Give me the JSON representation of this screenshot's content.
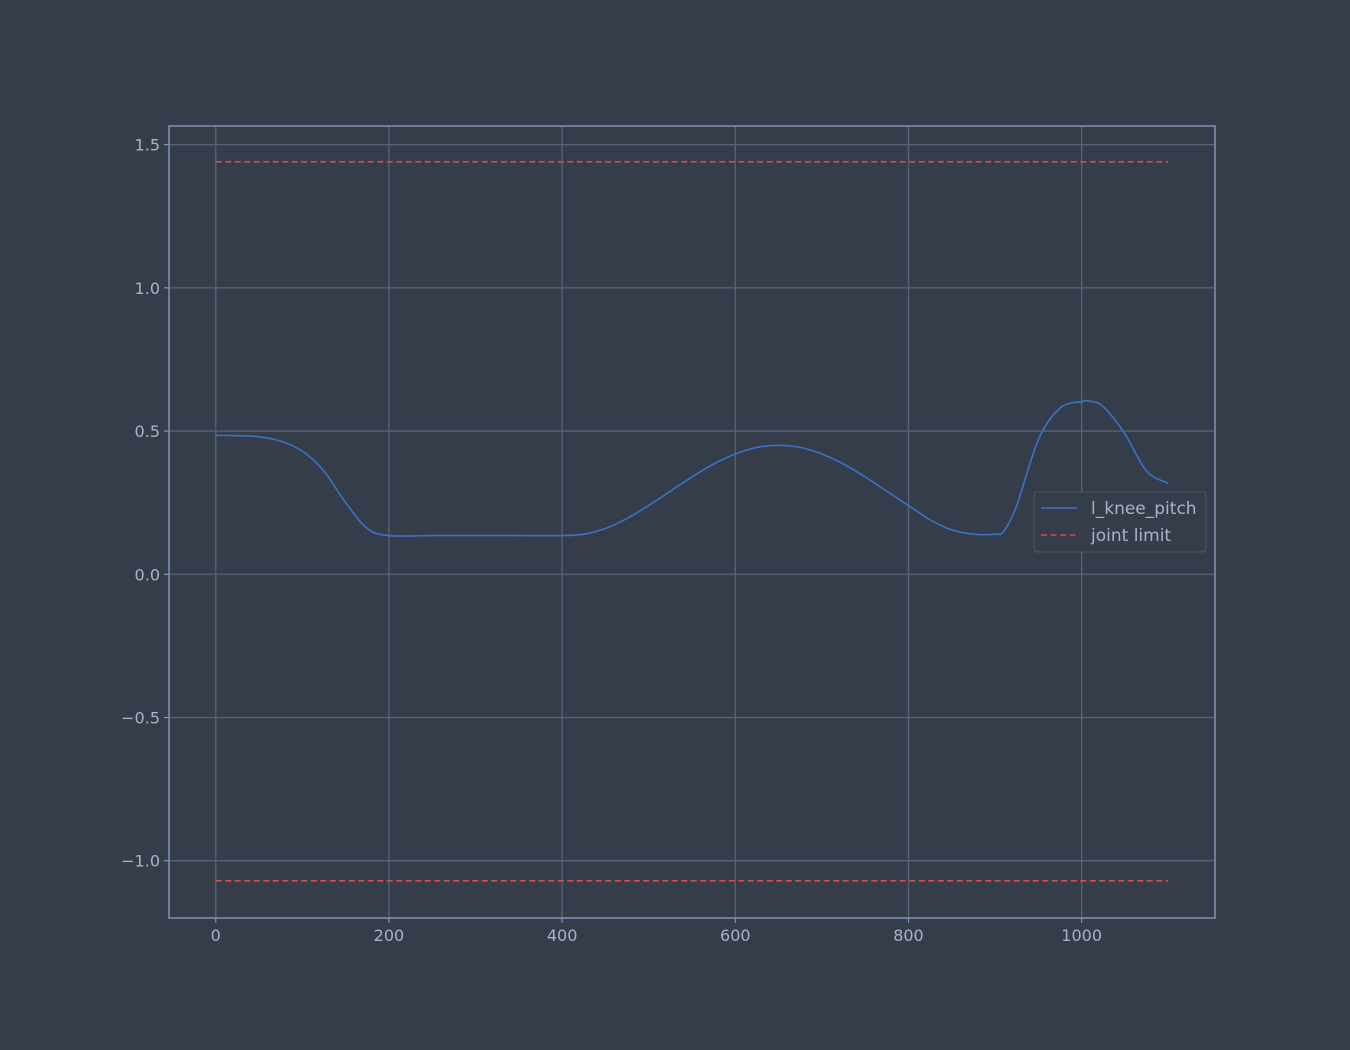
{
  "chart_data": {
    "type": "line",
    "title": "",
    "xlabel": "",
    "ylabel": "",
    "xlim": [
      -54,
      1154
    ],
    "ylim": [
      -1.2,
      1.565
    ],
    "x_ticks": [
      0,
      200,
      400,
      600,
      800,
      1000
    ],
    "y_ticks": [
      -1.0,
      -0.5,
      0.0,
      0.5,
      1.0,
      1.5
    ],
    "x_tick_labels": [
      "0",
      "200",
      "400",
      "600",
      "800",
      "1000"
    ],
    "y_tick_labels": [
      "−1.0",
      "−0.5",
      "0.0",
      "0.5",
      "1.0",
      "1.5"
    ],
    "grid": true,
    "legend_position": "center-right",
    "series": [
      {
        "name": "l_knee_pitch",
        "color": "#3a72c8",
        "style": "solid",
        "x": [
          0,
          25,
          50,
          75,
          100,
          125,
          150,
          175,
          200,
          250,
          300,
          350,
          400,
          425,
          450,
          475,
          500,
          525,
          550,
          575,
          600,
          625,
          650,
          675,
          700,
          725,
          750,
          775,
          800,
          825,
          850,
          875,
          900,
          910,
          925,
          950,
          975,
          1000,
          1010,
          1025,
          1050,
          1075,
          1100
        ],
        "y": [
          0.485,
          0.484,
          0.48,
          0.465,
          0.43,
          0.36,
          0.25,
          0.16,
          0.135,
          0.135,
          0.135,
          0.135,
          0.135,
          0.14,
          0.16,
          0.195,
          0.24,
          0.29,
          0.34,
          0.385,
          0.42,
          0.443,
          0.45,
          0.443,
          0.42,
          0.385,
          0.34,
          0.29,
          0.24,
          0.19,
          0.155,
          0.14,
          0.14,
          0.15,
          0.24,
          0.47,
          0.58,
          0.603,
          0.604,
          0.585,
          0.49,
          0.36,
          0.318
        ]
      },
      {
        "name": "joint limit",
        "color": "#d94a52",
        "style": "dashed",
        "x": [
          0,
          1100
        ],
        "y": [
          1.44,
          1.44
        ]
      },
      {
        "name": "",
        "color": "#d94a52",
        "style": "dashed",
        "x": [
          0,
          1100
        ],
        "y": [
          -1.07,
          -1.07
        ]
      }
    ]
  }
}
